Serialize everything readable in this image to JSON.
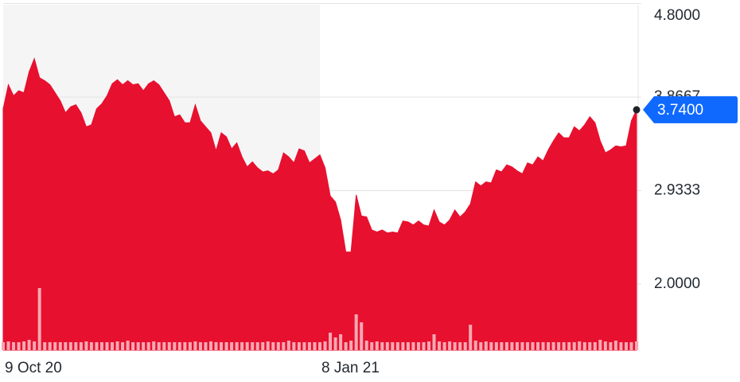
{
  "chart_data": {
    "type": "area",
    "categories": [
      "9 Oct 20",
      null,
      null,
      null,
      null,
      null,
      null,
      null,
      null,
      null,
      null,
      null,
      null,
      null,
      null,
      null,
      null,
      null,
      null,
      null,
      null,
      null,
      null,
      null,
      null,
      null,
      null,
      null,
      null,
      null,
      null,
      null,
      null,
      null,
      null,
      null,
      null,
      null,
      null,
      null,
      null,
      null,
      null,
      null,
      null,
      null,
      null,
      null,
      null,
      null,
      null,
      null,
      null,
      null,
      null,
      null,
      null,
      null,
      null,
      null,
      null,
      "8 Jan 21",
      null,
      null,
      null,
      null,
      null,
      null,
      null,
      null,
      null,
      null,
      null,
      null,
      null,
      null,
      null,
      null,
      null,
      null,
      null,
      null,
      null,
      null,
      null,
      null,
      null,
      null,
      null,
      null,
      null,
      null,
      null,
      null,
      null,
      null,
      null,
      null,
      null,
      null,
      null,
      null,
      null,
      null,
      null,
      null,
      null,
      null,
      null,
      null,
      null,
      null,
      null,
      null,
      null,
      null,
      null,
      null,
      null,
      null,
      null,
      null,
      null
    ],
    "series": [
      {
        "color": "#e8102f",
        "values": [
          3.75,
          3.99,
          3.88,
          3.93,
          3.91,
          4.12,
          4.25,
          4.06,
          4.03,
          3.99,
          3.91,
          3.83,
          3.71,
          3.77,
          3.79,
          3.71,
          3.57,
          3.59,
          3.75,
          3.8,
          3.88,
          4.0,
          4.04,
          3.99,
          4.03,
          3.99,
          4.0,
          3.93,
          4.0,
          4.03,
          3.99,
          3.91,
          3.83,
          3.67,
          3.69,
          3.61,
          3.61,
          3.79,
          3.63,
          3.57,
          3.51,
          3.33,
          3.51,
          3.47,
          3.35,
          3.41,
          3.27,
          3.17,
          3.22,
          3.16,
          3.12,
          3.13,
          3.1,
          3.14,
          3.31,
          3.27,
          3.21,
          3.35,
          3.33,
          3.21,
          3.25,
          3.29,
          3.16,
          2.88,
          2.82,
          2.64,
          2.32,
          2.32,
          2.89,
          2.68,
          2.67,
          2.54,
          2.52,
          2.54,
          2.51,
          2.52,
          2.51,
          2.63,
          2.62,
          2.59,
          2.63,
          2.59,
          2.58,
          2.74,
          2.62,
          2.59,
          2.64,
          2.74,
          2.67,
          2.72,
          2.8,
          3.02,
          2.98,
          3.02,
          3.01,
          3.14,
          3.12,
          3.19,
          3.17,
          3.13,
          3.1,
          3.21,
          3.19,
          3.27,
          3.23,
          3.34,
          3.43,
          3.51,
          3.46,
          3.46,
          3.57,
          3.53,
          3.59,
          3.67,
          3.61,
          3.43,
          3.31,
          3.34,
          3.38,
          3.37,
          3.38,
          3.63,
          3.74
        ]
      },
      {
        "color": "#f7a8b3",
        "axis": "y2",
        "values": [
          10,
          11,
          10,
          10,
          11,
          13,
          11,
          78,
          10,
          10,
          10,
          10,
          10,
          10,
          10,
          10,
          11,
          10,
          10,
          10,
          10,
          10,
          11,
          10,
          12,
          10,
          10,
          10,
          10,
          11,
          10,
          10,
          10,
          10,
          10,
          10,
          10,
          11,
          10,
          10,
          11,
          10,
          10,
          10,
          10,
          10,
          10,
          10,
          10,
          10,
          10,
          11,
          10,
          10,
          10,
          12,
          10,
          10,
          10,
          10,
          10,
          10,
          11,
          22,
          16,
          20,
          10,
          12,
          45,
          35,
          12,
          10,
          11,
          10,
          10,
          10,
          10,
          10,
          10,
          10,
          10,
          10,
          11,
          20,
          11,
          10,
          11,
          10,
          10,
          10,
          32,
          12,
          10,
          11,
          10,
          10,
          10,
          10,
          10,
          10,
          10,
          10,
          10,
          10,
          10,
          10,
          10,
          10,
          10,
          10,
          10,
          11,
          10,
          10,
          10,
          13,
          11,
          10,
          12,
          10,
          10,
          10,
          11
        ]
      }
    ],
    "ylim": [
      1.34,
      4.82
    ],
    "yticks": [
      {
        "value": 4.8,
        "label": "4.8000"
      },
      {
        "value": 3.8667,
        "label": "3.8667"
      },
      {
        "value": 2.9333,
        "label": "2.9333"
      },
      {
        "value": 2.0,
        "label": "2.0000"
      }
    ],
    "y2lim": [
      0,
      100
    ],
    "grid": true,
    "current_price": {
      "value": 3.74,
      "label": "3.7400",
      "color": "#0f69ff"
    }
  }
}
